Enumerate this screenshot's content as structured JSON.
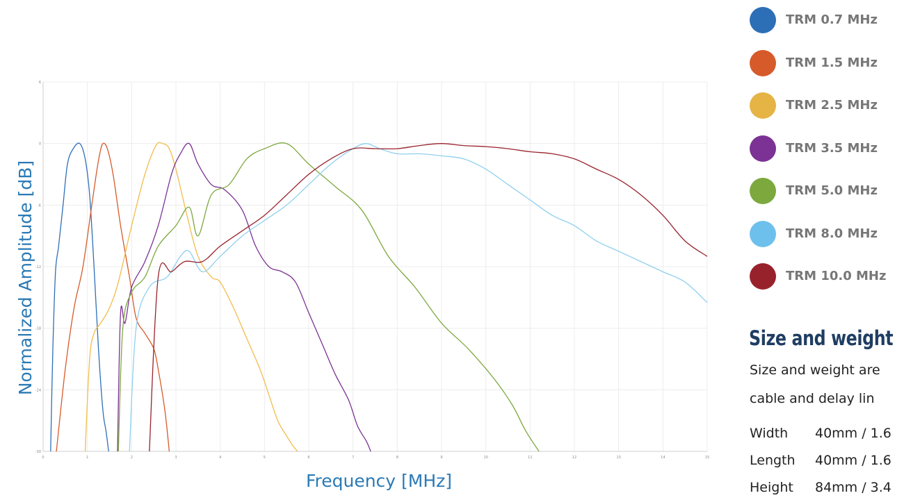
{
  "chart_data": {
    "type": "line",
    "xlabel": "Frequency [MHz]",
    "ylabel": "Normalized Amplitude [dB]",
    "xlim": [
      0,
      15
    ],
    "ylim": [
      -30,
      6
    ],
    "x_ticks": [
      "0",
      "1",
      "2",
      "3",
      "4",
      "5",
      "6",
      "7",
      "8",
      "9",
      "10",
      "11",
      "12",
      "13",
      "14",
      "15"
    ],
    "y_ticks": [
      "6",
      "0",
      "-6",
      "-12",
      "-18",
      "-24",
      "-30"
    ],
    "grid": true,
    "series": [
      {
        "name": "TRM 0.7 MHz",
        "color": "#2d6fb7",
        "x": [
          0.17,
          0.22,
          0.28,
          0.35,
          0.45,
          0.55,
          0.68,
          0.83,
          0.95,
          1.05,
          1.15,
          1.25,
          1.35,
          1.42,
          1.48
        ],
        "y": [
          -30,
          -20,
          -12.5,
          -10,
          -6,
          -2,
          -0.5,
          0,
          -1.5,
          -5,
          -12,
          -20,
          -26,
          -28,
          -30
        ]
      },
      {
        "name": "TRM 1.5 MHz",
        "color": "#d65a2a",
        "x": [
          0.3,
          0.5,
          0.7,
          0.9,
          1.1,
          1.2,
          1.28,
          1.35,
          1.45,
          1.58,
          1.75,
          1.95,
          2.1,
          2.3,
          2.5,
          2.6,
          2.75,
          2.85
        ],
        "y": [
          -30,
          -22,
          -16,
          -12,
          -6,
          -3,
          -1,
          0,
          -0.5,
          -3,
          -8,
          -13,
          -17,
          -18.5,
          -20,
          -22,
          -26,
          -30
        ]
      },
      {
        "name": "TRM 2.5 MHz",
        "color": "#f1bc4b",
        "x": [
          0.95,
          1.05,
          1.15,
          1.3,
          1.5,
          1.7,
          2.0,
          2.3,
          2.55,
          2.7,
          2.85,
          3.0,
          3.25,
          3.5,
          3.8,
          4.0,
          4.3,
          4.6,
          4.9,
          5.1,
          5.3,
          5.5,
          5.65,
          5.75
        ],
        "y": [
          -30,
          -21,
          -18.5,
          -17.5,
          -16,
          -13.5,
          -8,
          -3,
          -0.2,
          0,
          -0.5,
          -2.5,
          -7,
          -11,
          -13,
          -13.5,
          -16,
          -19,
          -22,
          -24.5,
          -27,
          -28.5,
          -29.5,
          -30
        ]
      },
      {
        "name": "TRM 3.5 MHz",
        "color": "#7b3294",
        "x": [
          1.68,
          1.75,
          1.85,
          2.0,
          2.3,
          2.6,
          2.9,
          3.1,
          3.3,
          3.5,
          3.8,
          4.1,
          4.5,
          4.8,
          5.1,
          5.4,
          5.7,
          6.0,
          6.3,
          6.6,
          6.9,
          7.1,
          7.3,
          7.4
        ],
        "y": [
          -30,
          -16.5,
          -17.5,
          -14,
          -11.5,
          -8,
          -3,
          -1,
          0,
          -2,
          -4,
          -4.5,
          -6.5,
          -10,
          -12,
          -12.5,
          -13.5,
          -16.5,
          -19.5,
          -22.5,
          -25,
          -27.5,
          -29,
          -30
        ]
      },
      {
        "name": "TRM 5.0 MHz",
        "color": "#7ca83e",
        "x": [
          1.7,
          1.8,
          2.0,
          2.3,
          2.6,
          3.0,
          3.3,
          3.5,
          3.8,
          4.2,
          4.6,
          5.0,
          5.5,
          6.0,
          6.6,
          7.2,
          7.8,
          8.4,
          9.0,
          9.6,
          10.2,
          10.6,
          10.9,
          11.2
        ],
        "y": [
          -30,
          -18,
          -14.5,
          -13,
          -10,
          -8,
          -6.2,
          -9,
          -5,
          -4,
          -1.5,
          -0.5,
          0,
          -2,
          -4.2,
          -6.5,
          -11,
          -14,
          -17.5,
          -20,
          -23,
          -25.5,
          -28,
          -30
        ]
      },
      {
        "name": "TRM 8.0 MHz",
        "color": "#8fd0ee",
        "x": [
          1.95,
          2.1,
          2.4,
          2.8,
          3.1,
          3.3,
          3.6,
          4.0,
          4.5,
          5.0,
          5.5,
          6.0,
          6.5,
          7.0,
          7.3,
          7.6,
          8.0,
          8.5,
          9.0,
          9.5,
          10.0,
          10.5,
          11.0,
          11.5,
          12.0,
          12.5,
          13.0,
          13.5,
          14.0,
          14.5,
          15.0
        ],
        "y": [
          -30,
          -18,
          -14,
          -13,
          -11,
          -10.5,
          -12.5,
          -11,
          -9,
          -7.5,
          -6,
          -4,
          -2,
          -0.5,
          0,
          -0.5,
          -1,
          -1,
          -1.2,
          -1.5,
          -2.5,
          -4,
          -5.5,
          -7,
          -8,
          -9.5,
          -10.5,
          -11.5,
          -12.5,
          -13.5,
          -15.5
        ]
      },
      {
        "name": "TRM 10.0 MHz",
        "color": "#98222c",
        "x": [
          2.4,
          2.6,
          2.9,
          3.2,
          3.6,
          4.0,
          4.5,
          5.0,
          5.5,
          6.0,
          6.5,
          7.0,
          7.5,
          8.0,
          8.5,
          9.0,
          9.5,
          10.0,
          10.5,
          11.0,
          11.5,
          12.0,
          12.5,
          13.0,
          13.5,
          14.0,
          14.5,
          15.0
        ],
        "y": [
          -30,
          -13,
          -12.5,
          -11.5,
          -11.5,
          -10,
          -8.5,
          -7,
          -5,
          -3,
          -1.5,
          -0.5,
          -0.5,
          -0.5,
          -0.2,
          0,
          -0.2,
          -0.3,
          -0.5,
          -0.8,
          -1,
          -1.5,
          -2.5,
          -3.5,
          -5,
          -7,
          -9.5,
          -11
        ]
      }
    ]
  },
  "legend": [
    {
      "label": "TRM 0.7 MHz",
      "color": "#2d6fb7"
    },
    {
      "label": "TRM 1.5 MHz",
      "color": "#d65a2a"
    },
    {
      "label": "TRM 2.5 MHz",
      "color": "#e5b445"
    },
    {
      "label": "TRM 3.5 MHz",
      "color": "#7b3294"
    },
    {
      "label": "TRM 5.0 MHz",
      "color": "#7ca83e"
    },
    {
      "label": "TRM 8.0 MHz",
      "color": "#6ec0ec"
    },
    {
      "label": "TRM 10.0 MHz",
      "color": "#98222c"
    }
  ],
  "specs": {
    "title": "Size and weight",
    "text_line1": "Size and weight are",
    "text_line2": "cable and delay lin",
    "rows": [
      {
        "key": "Width",
        "value": "40mm / 1.6"
      },
      {
        "key": "Length",
        "value": "40mm / 1.6"
      },
      {
        "key": "Height",
        "value": "84mm / 3.4"
      }
    ]
  }
}
